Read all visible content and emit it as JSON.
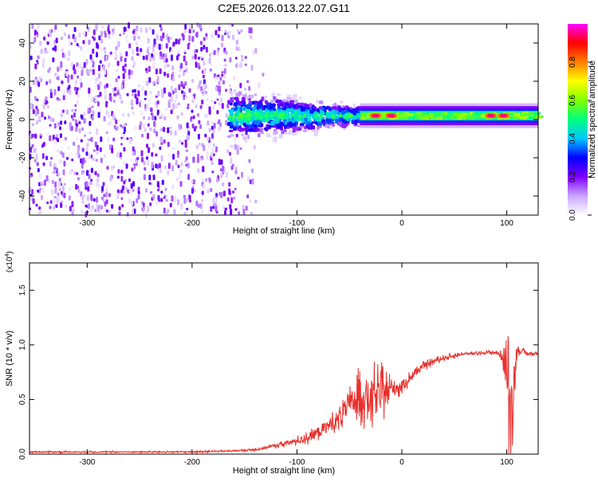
{
  "title": "C2E5.2026.013.22.07.G11",
  "chart_data": [
    {
      "type": "heatmap",
      "xlabel": "Height of straight line (km)",
      "ylabel": "Frequency (Hz)",
      "xlim": [
        -355,
        130
      ],
      "ylim": [
        -50,
        50
      ],
      "x_ticks": [
        -300,
        -200,
        -100,
        0,
        100
      ],
      "x_tick_labels": [
        "-300",
        "-200",
        "-100",
        "0",
        "100"
      ],
      "y_ticks": [
        -40,
        -20,
        0,
        20,
        40
      ],
      "y_tick_labels": [
        "-40",
        "-20",
        "0",
        "20",
        "40"
      ],
      "colorbar": {
        "label": "Normalized spectral amplitude",
        "range": [
          0.0,
          1.0
        ],
        "ticks": [
          0.0,
          0.2,
          0.4,
          0.6,
          0.8
        ],
        "tick_labels": [
          "0.0",
          "0.2",
          "0.4",
          "0.6",
          "0.8"
        ],
        "colormap": [
          "#ffffff",
          "#c9a6ff",
          "#7f00ff",
          "#0000ff",
          "#00c8ff",
          "#00ff80",
          "#80ff00",
          "#ffff00",
          "#ff8000",
          "#ff0000",
          "#ff00ff"
        ]
      },
      "structure": {
        "noise_region_x": [
          -355,
          -165
        ],
        "noise_fade_x": [
          -165,
          -130
        ],
        "cluster_x": [
          -165,
          -40
        ],
        "ridge_x": [
          -40,
          130
        ],
        "ridge_center_hz": 2,
        "ridge_halfwidth_hz": 3,
        "hotspots_x": [
          -25,
          -10,
          85,
          97
        ]
      }
    },
    {
      "type": "line",
      "xlabel": "Height of straight line (km)",
      "ylabel": "SNR (10 * v/v)",
      "y_multiplier": "(x10",
      "y_multiplier_exp": "4",
      "y_multiplier_close": ")",
      "xlim": [
        -355,
        130
      ],
      "ylim": [
        0,
        1.75
      ],
      "x_ticks": [
        -300,
        -200,
        -100,
        0,
        100
      ],
      "x_tick_labels": [
        "-300",
        "-200",
        "-100",
        "0",
        "100"
      ],
      "y_ticks": [
        0.0,
        0.5,
        1.0,
        1.5
      ],
      "y_tick_labels": [
        "0.0",
        "0.5",
        "1.0",
        "1.5"
      ],
      "series": [
        {
          "color": "#e8302c",
          "x": [
            -355,
            -300,
            -250,
            -200,
            -160,
            -140,
            -120,
            -100,
            -90,
            -80,
            -70,
            -60,
            -50,
            -40,
            -30,
            -20,
            -10,
            0,
            10,
            20,
            30,
            40,
            50,
            60,
            70,
            80,
            90,
            95,
            100,
            102,
            105,
            110,
            120,
            130
          ],
          "y": [
            0.02,
            0.02,
            0.02,
            0.02,
            0.03,
            0.04,
            0.08,
            0.12,
            0.15,
            0.2,
            0.26,
            0.33,
            0.45,
            0.55,
            0.5,
            0.55,
            0.6,
            0.62,
            0.72,
            0.8,
            0.85,
            0.88,
            0.9,
            0.92,
            0.92,
            0.93,
            0.93,
            0.9,
            0.8,
            0.3,
            0.5,
            0.95,
            0.92,
            0.92
          ],
          "noise_amplitude": [
            0.01,
            0.01,
            0.01,
            0.01,
            0.01,
            0.02,
            0.03,
            0.05,
            0.07,
            0.1,
            0.12,
            0.15,
            0.2,
            0.3,
            0.35,
            0.3,
            0.15,
            0.1,
            0.06,
            0.05,
            0.04,
            0.03,
            0.03,
            0.02,
            0.02,
            0.02,
            0.03,
            0.05,
            0.5,
            0.8,
            0.5,
            0.05,
            0.03,
            0.02
          ]
        }
      ]
    }
  ]
}
